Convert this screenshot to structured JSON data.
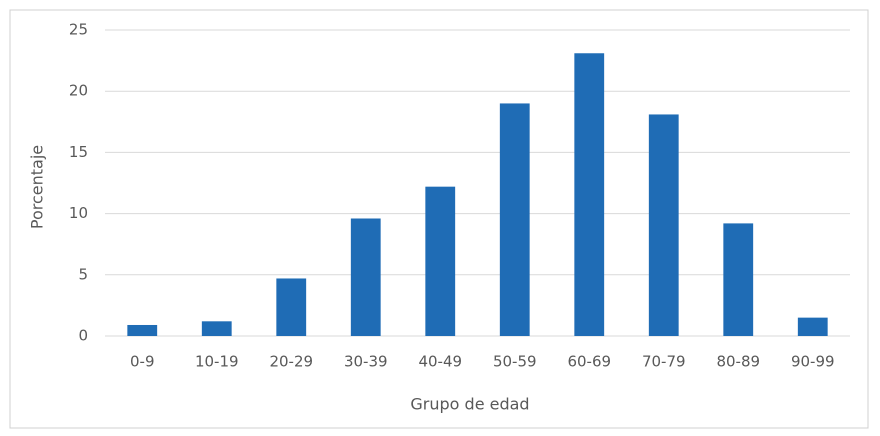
{
  "chart_data": {
    "type": "bar",
    "x_label": "Grupo de edad",
    "y_label": "Porcentaje",
    "categories": [
      "0-9",
      "10-19",
      "20-29",
      "30-39",
      "40-49",
      "50-59",
      "60-69",
      "70-79",
      "80-89",
      "90-99"
    ],
    "values": [
      0.9,
      1.2,
      4.7,
      9.6,
      12.2,
      19.0,
      23.1,
      18.1,
      9.2,
      1.5
    ],
    "color": "#1f6cb5",
    "ylim": [
      0,
      25
    ],
    "yticks": [
      0,
      5,
      10,
      15,
      20,
      25
    ],
    "grid": true
  }
}
